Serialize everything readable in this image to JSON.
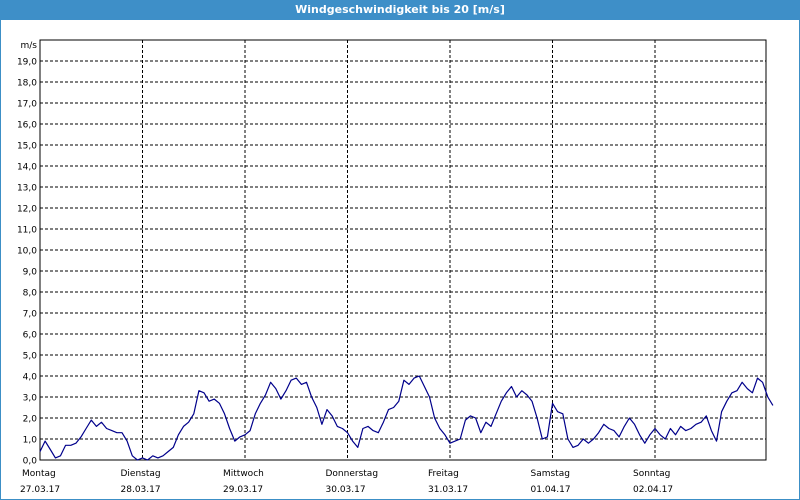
{
  "window": {
    "title": "Windgeschwindigkeit bis 20 [m/s]"
  },
  "colors": {
    "titlebar": "#3e8fc8",
    "line": "#00008b",
    "grid": "#000000"
  },
  "chart_data": {
    "type": "line",
    "title": "Windgeschwindigkeit bis 20 [m/s]",
    "ylabel": "m/s",
    "ylim": [
      0,
      20
    ],
    "y_ticks": [
      "0,0",
      "1,0",
      "2,0",
      "3,0",
      "4,0",
      "5,0",
      "6,0",
      "7,0",
      "8,0",
      "9,0",
      "10,0",
      "11,0",
      "12,0",
      "13,0",
      "14,0",
      "15,0",
      "16,0",
      "17,0",
      "18,0",
      "19,0"
    ],
    "x_categories": [
      {
        "day": "Montag",
        "date": "27.03.17"
      },
      {
        "day": "Dienstag",
        "date": "28.03.17"
      },
      {
        "day": "Mittwoch",
        "date": "29.03.17"
      },
      {
        "day": "Donnerstag",
        "date": "30.03.17"
      },
      {
        "day": "Freitag",
        "date": "31.03.17"
      },
      {
        "day": "Samstag",
        "date": "01.04.17"
      },
      {
        "day": "Sonntag",
        "date": "02.04.17"
      }
    ],
    "grid": true,
    "series": [
      {
        "x": [
          0,
          0.05,
          0.1,
          0.15,
          0.2,
          0.25,
          0.3,
          0.35,
          0.4,
          0.45,
          0.5,
          0.55,
          0.6,
          0.65,
          0.7,
          0.75,
          0.8,
          0.85,
          0.9,
          0.95,
          1.0,
          1.05,
          1.1,
          1.15,
          1.2,
          1.25,
          1.3,
          1.35,
          1.4,
          1.45,
          1.5,
          1.55,
          1.6,
          1.65,
          1.7,
          1.75,
          1.8,
          1.85,
          1.9,
          1.95,
          2.0,
          2.05,
          2.1,
          2.15,
          2.2,
          2.25,
          2.3,
          2.35,
          2.4,
          2.45,
          2.5,
          2.55,
          2.6,
          2.65,
          2.7,
          2.75,
          2.8,
          2.85,
          2.9,
          2.95,
          3.0,
          3.05,
          3.1,
          3.15,
          3.2,
          3.25,
          3.3,
          3.35,
          3.4,
          3.45,
          3.5,
          3.55,
          3.6,
          3.65,
          3.7,
          3.75,
          3.8,
          3.85,
          3.9,
          3.95,
          4.0,
          4.05,
          4.1,
          4.15,
          4.2,
          4.25,
          4.3,
          4.35,
          4.4,
          4.45,
          4.5,
          4.55,
          4.6,
          4.65,
          4.7,
          4.75,
          4.8,
          4.85,
          4.9,
          4.95,
          5.0,
          5.05,
          5.1,
          5.15,
          5.2,
          5.25,
          5.3,
          5.35,
          5.4,
          5.45,
          5.5,
          5.55,
          5.6,
          5.65,
          5.7,
          5.75,
          5.8,
          5.85,
          5.9,
          5.95,
          6.0,
          6.05,
          6.1,
          6.15,
          6.2,
          6.25,
          6.3,
          6.35,
          6.4,
          6.45,
          6.5,
          6.55,
          6.6,
          6.65,
          6.7,
          6.75,
          6.8,
          6.85,
          6.9,
          6.95,
          7.0,
          7.05,
          7.1,
          7.15
        ],
        "y": [
          0.4,
          0.9,
          0.5,
          0.1,
          0.2,
          0.7,
          0.7,
          0.8,
          1.1,
          1.5,
          1.9,
          1.6,
          1.8,
          1.5,
          1.4,
          1.3,
          1.3,
          0.9,
          0.2,
          0.0,
          0.1,
          0.0,
          0.2,
          0.1,
          0.2,
          0.4,
          0.6,
          1.2,
          1.6,
          1.8,
          2.2,
          3.3,
          3.2,
          2.8,
          2.9,
          2.7,
          2.2,
          1.5,
          0.9,
          1.1,
          1.2,
          1.4,
          2.2,
          2.7,
          3.1,
          3.7,
          3.4,
          2.9,
          3.3,
          3.8,
          3.9,
          3.6,
          3.7,
          3.0,
          2.5,
          1.7,
          2.4,
          2.1,
          1.6,
          1.5,
          1.3,
          0.9,
          0.6,
          1.5,
          1.6,
          1.4,
          1.3,
          1.8,
          2.4,
          2.5,
          2.8,
          3.8,
          3.6,
          3.9,
          4.0,
          3.5,
          3.0,
          2.0,
          1.5,
          1.2,
          0.8,
          0.9,
          1.0,
          1.9,
          2.1,
          2.0,
          1.3,
          1.8,
          1.6,
          2.2,
          2.8,
          3.2,
          3.5,
          3.0,
          3.3,
          3.1,
          2.8,
          2.0,
          1.0,
          1.1,
          2.7,
          2.3,
          2.2,
          1.0,
          0.6,
          0.7,
          1.0,
          0.8,
          1.0,
          1.3,
          1.7,
          1.5,
          1.4,
          1.1,
          1.6,
          2.0,
          1.7,
          1.2,
          0.8,
          1.2,
          1.5,
          1.2,
          1.0,
          1.5,
          1.2,
          1.6,
          1.4,
          1.5,
          1.7,
          1.8,
          2.1,
          1.4,
          0.9,
          2.3,
          2.8,
          3.2,
          3.3,
          3.7,
          3.4,
          3.2,
          3.9,
          3.7,
          3.0,
          2.6
        ]
      }
    ]
  }
}
